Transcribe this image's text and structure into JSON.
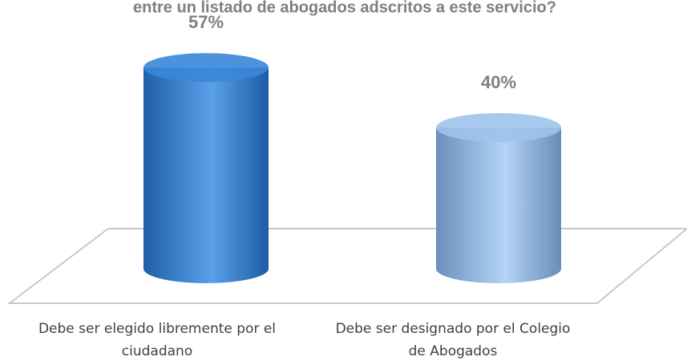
{
  "chart_data": {
    "type": "bar",
    "title": "entre un listado de abogados adscritos a este servicio?",
    "categories": [
      "Debe ser elegido libremente por el ciudadano",
      "Debe ser designado por el Colegio de Abogados"
    ],
    "values": [
      57,
      40
    ],
    "value_labels": [
      "57%",
      "40%"
    ],
    "colors": [
      "#3a86d8",
      "#9dc3ec"
    ]
  }
}
